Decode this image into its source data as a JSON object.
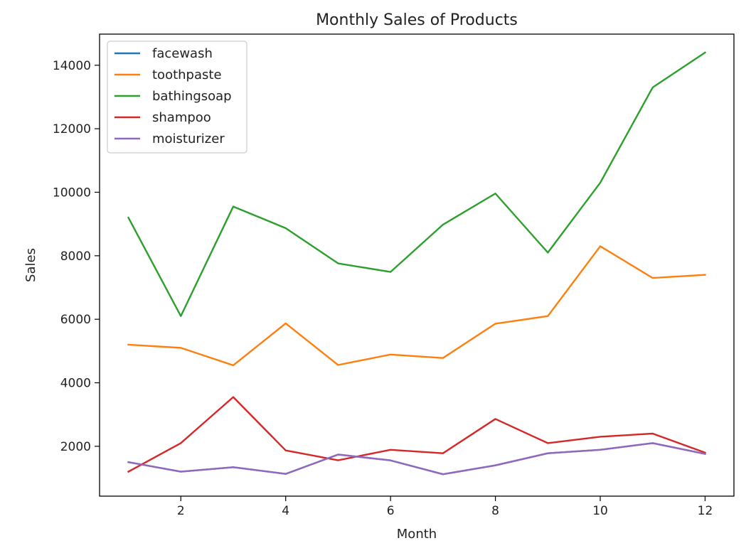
{
  "chart_data": {
    "type": "line",
    "title": "Monthly Sales of Products",
    "xlabel": "Month",
    "ylabel": "Sales",
    "x": [
      1,
      2,
      3,
      4,
      5,
      6,
      7,
      8,
      9,
      10,
      11,
      12
    ],
    "xlim": [
      0.45,
      12.55
    ],
    "ylim": [
      430,
      14980
    ],
    "xticks": [
      2,
      4,
      6,
      8,
      10,
      12
    ],
    "xtick_labels": [
      "2",
      "4",
      "6",
      "8",
      "10",
      "12"
    ],
    "yticks": [
      2000,
      4000,
      6000,
      8000,
      10000,
      12000,
      14000
    ],
    "ytick_labels": [
      "2000",
      "4000",
      "6000",
      "8000",
      "10000",
      "12000",
      "14000"
    ],
    "grid": false,
    "legend_position": "top-left",
    "series": [
      {
        "name": "facewash",
        "color": "#1f77b4",
        "values": [
          1500,
          1200,
          1340,
          1130,
          1740,
          1555,
          1120,
          1400,
          1780,
          1890,
          2100,
          1760
        ]
      },
      {
        "name": "toothpaste",
        "color": "#ff7f0e",
        "values": [
          5200,
          5100,
          4550,
          5870,
          4560,
          4890,
          4780,
          5860,
          6100,
          8300,
          7300,
          7400
        ]
      },
      {
        "name": "bathingsoap",
        "color": "#2ca02c",
        "values": [
          9200,
          6100,
          9550,
          8870,
          7760,
          7490,
          8980,
          9960,
          8100,
          10300,
          13300,
          14400
        ]
      },
      {
        "name": "shampoo",
        "color": "#d62728",
        "values": [
          1200,
          2100,
          3550,
          1870,
          1560,
          1890,
          1780,
          2860,
          2100,
          2300,
          2400,
          1800
        ]
      },
      {
        "name": "moisturizer",
        "color": "#9467bd",
        "values": [
          1500,
          1200,
          1340,
          1130,
          1740,
          1555,
          1120,
          1400,
          1780,
          1890,
          2100,
          1760
        ]
      }
    ]
  }
}
